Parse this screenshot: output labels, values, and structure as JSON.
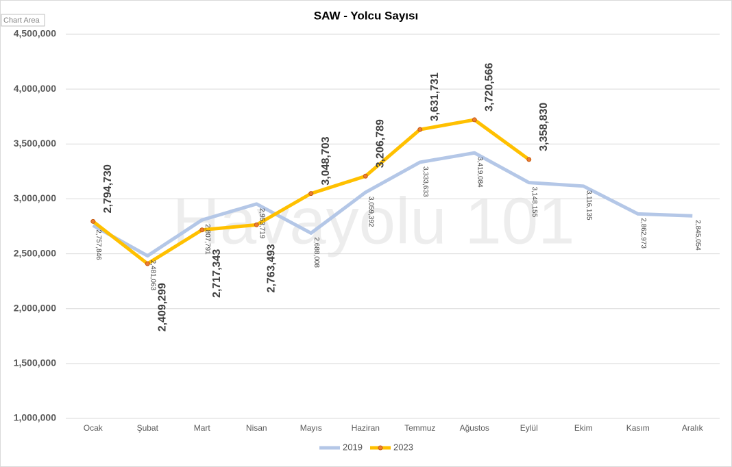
{
  "chart_data": {
    "type": "line",
    "title": "SAW - Yolcu Sayısı",
    "tooltip": "Chart Area",
    "watermark": "Havayolu 101",
    "categories": [
      "Ocak",
      "Şubat",
      "Mart",
      "Nisan",
      "Mayıs",
      "Haziran",
      "Temmuz",
      "Ağustos",
      "Eylül",
      "Ekim",
      "Kasım",
      "Aralık"
    ],
    "series": [
      {
        "name": "2019",
        "color": "#b4c7e7",
        "values": [
          2757846,
          2481063,
          2807791,
          2953719,
          2688008,
          3059392,
          3333633,
          3419084,
          3148155,
          3116135,
          2862973,
          2845054
        ],
        "value_labels": [
          "2,757,846",
          "2,481,063",
          "2,807,791",
          "2,953,719",
          "2,688,008",
          "3,059,392",
          "3,333,633",
          "3,419,084",
          "3,148,155",
          "3,116,135",
          "2,862,973",
          "2,845,054"
        ]
      },
      {
        "name": "2023",
        "color": "#ffc000",
        "marker_color": "#ed7d31",
        "values": [
          2794730,
          2409299,
          2717343,
          2763493,
          3048703,
          3206789,
          3631731,
          3720566,
          3358830,
          null,
          null,
          null
        ],
        "value_labels": [
          "2,794,730",
          "2,409,299",
          "2,717,343",
          "2,763,493",
          "3,048,703",
          "3,206,789",
          "3,631,731",
          "3,720,566",
          "3,358,830",
          null,
          null,
          null
        ]
      }
    ],
    "ylim": [
      1000000,
      4500000
    ],
    "yticks": [
      {
        "value": 1000000,
        "label": "1,000,000"
      },
      {
        "value": 1500000,
        "label": "1,500,000"
      },
      {
        "value": 2000000,
        "label": "2,000,000"
      },
      {
        "value": 2500000,
        "label": "2,500,000"
      },
      {
        "value": 3000000,
        "label": "3,000,000"
      },
      {
        "value": 3500000,
        "label": "3,500,000"
      },
      {
        "value": 4000000,
        "label": "4,000,000"
      },
      {
        "value": 4500000,
        "label": "4,500,000"
      }
    ],
    "grid": true,
    "legend": "bottom"
  }
}
